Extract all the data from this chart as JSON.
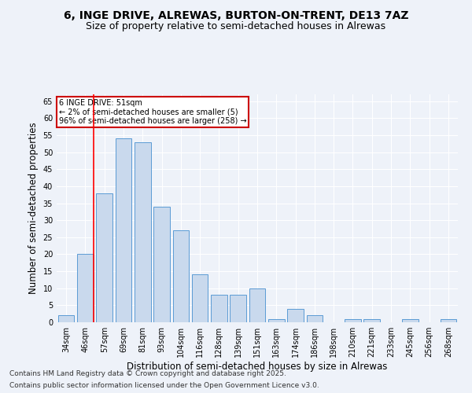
{
  "title1": "6, INGE DRIVE, ALREWAS, BURTON-ON-TRENT, DE13 7AZ",
  "title2": "Size of property relative to semi-detached houses in Alrewas",
  "xlabel": "Distribution of semi-detached houses by size in Alrewas",
  "ylabel": "Number of semi-detached properties",
  "categories": [
    "34sqm",
    "46sqm",
    "57sqm",
    "69sqm",
    "81sqm",
    "93sqm",
    "104sqm",
    "116sqm",
    "128sqm",
    "139sqm",
    "151sqm",
    "163sqm",
    "174sqm",
    "186sqm",
    "198sqm",
    "210sqm",
    "221sqm",
    "233sqm",
    "245sqm",
    "256sqm",
    "268sqm"
  ],
  "values": [
    2,
    20,
    38,
    54,
    53,
    34,
    27,
    14,
    8,
    8,
    10,
    1,
    4,
    2,
    0,
    1,
    1,
    0,
    1,
    0,
    1
  ],
  "bar_color": "#c9d9ed",
  "bar_edge_color": "#5b9bd5",
  "red_line_index": 1,
  "annotation_text": "6 INGE DRIVE: 51sqm\n← 2% of semi-detached houses are smaller (5)\n96% of semi-detached houses are larger (258) →",
  "annotation_box_color": "#ffffff",
  "annotation_box_edge": "#cc0000",
  "footnote1": "Contains HM Land Registry data © Crown copyright and database right 2025.",
  "footnote2": "Contains public sector information licensed under the Open Government Licence v3.0.",
  "ylim": [
    0,
    67
  ],
  "yticks": [
    0,
    5,
    10,
    15,
    20,
    25,
    30,
    35,
    40,
    45,
    50,
    55,
    60,
    65
  ],
  "bg_color": "#eef2f9",
  "grid_color": "#ffffff",
  "title1_fontsize": 10,
  "title2_fontsize": 9,
  "tick_fontsize": 7,
  "label_fontsize": 8.5,
  "footnote_fontsize": 6.5
}
